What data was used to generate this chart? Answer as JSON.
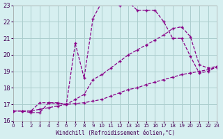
{
  "xlabel": "Windchill (Refroidissement éolien,°C)",
  "bg_color": "#d6eff0",
  "grid_color": "#aacccc",
  "line_color": "#880088",
  "xlim": [
    0,
    23
  ],
  "ylim": [
    16,
    23
  ],
  "xticks": [
    0,
    1,
    2,
    3,
    4,
    5,
    6,
    7,
    8,
    9,
    10,
    11,
    12,
    13,
    14,
    15,
    16,
    17,
    18,
    19,
    20,
    21,
    22,
    23
  ],
  "yticks": [
    16,
    17,
    18,
    19,
    20,
    21,
    22,
    23
  ],
  "line1_x": [
    0,
    1,
    2,
    3,
    4,
    5,
    6,
    7,
    8,
    9,
    10,
    11,
    12,
    13,
    14,
    15,
    16,
    17,
    18,
    19,
    20,
    21,
    22,
    23
  ],
  "line1_y": [
    16.6,
    16.6,
    16.5,
    16.5,
    17.1,
    17.1,
    17.0,
    20.7,
    18.6,
    22.2,
    23.2,
    23.4,
    23.0,
    23.2,
    22.7,
    22.7,
    22.7,
    22.0,
    21.0,
    21.0,
    19.9,
    18.9,
    19.0,
    19.3
  ],
  "line2_x": [
    0,
    1,
    2,
    3,
    4,
    5,
    6,
    7,
    8,
    9,
    10,
    11,
    12,
    13,
    14,
    15,
    16,
    17,
    18,
    19,
    20,
    21,
    22,
    23
  ],
  "line2_y": [
    16.6,
    16.6,
    16.6,
    17.1,
    17.1,
    17.05,
    17.0,
    17.3,
    17.6,
    18.5,
    18.8,
    19.2,
    19.6,
    20.0,
    20.3,
    20.6,
    20.9,
    21.2,
    21.6,
    21.7,
    21.1,
    19.4,
    19.2,
    19.3
  ],
  "line3_x": [
    0,
    1,
    2,
    3,
    4,
    5,
    6,
    7,
    8,
    9,
    10,
    11,
    12,
    13,
    14,
    15,
    16,
    17,
    18,
    19,
    20,
    21,
    22,
    23
  ],
  "line3_y": [
    16.6,
    16.6,
    16.6,
    16.7,
    16.8,
    16.9,
    17.0,
    17.05,
    17.1,
    17.2,
    17.3,
    17.5,
    17.7,
    17.9,
    18.0,
    18.2,
    18.35,
    18.5,
    18.65,
    18.8,
    18.9,
    19.0,
    19.1,
    19.25
  ]
}
